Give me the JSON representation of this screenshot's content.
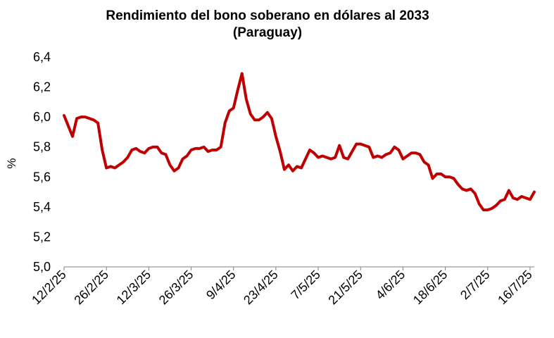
{
  "chart_data": {
    "type": "line",
    "title_lines": [
      "Rendimiento del bono soberano en dólares al 2033",
      "(Paraguay)"
    ],
    "xlabel": "",
    "ylabel": "%",
    "ylim": [
      5.0,
      6.4
    ],
    "yticks": [
      5.0,
      5.2,
      5.4,
      5.6,
      5.8,
      6.0,
      6.2,
      6.4
    ],
    "ytick_labels": [
      "5,0",
      "5,2",
      "5,4",
      "5,6",
      "5,8",
      "6,0",
      "6,2",
      "6,4"
    ],
    "xticks": [
      "12/2/25",
      "26/2/25",
      "12/3/25",
      "26/3/25",
      "9/4/25",
      "23/4/25",
      "7/5/25",
      "21/5/25",
      "4/6/25",
      "18/6/25",
      "2/7/25",
      "16/7/25"
    ],
    "grid": false,
    "legend": "none",
    "series": [
      {
        "color": "#c00000",
        "x": [
          "12/2/25",
          "13/2/25",
          "14/2/25",
          "17/2/25",
          "18/2/25",
          "19/2/25",
          "20/2/25",
          "21/2/25",
          "24/2/25",
          "25/2/25",
          "26/2/25",
          "27/2/25",
          "28/2/25",
          "3/3/25",
          "4/3/25",
          "5/3/25",
          "6/3/25",
          "7/3/25",
          "10/3/25",
          "11/3/25",
          "12/3/25",
          "13/3/25",
          "14/3/25",
          "17/3/25",
          "18/3/25",
          "19/3/25",
          "20/3/25",
          "21/3/25",
          "24/3/25",
          "25/3/25",
          "26/3/25",
          "27/3/25",
          "28/3/25",
          "31/3/25",
          "1/4/25",
          "2/4/25",
          "3/4/25",
          "4/4/25",
          "7/4/25",
          "8/4/25",
          "9/4/25",
          "10/4/25",
          "11/4/25",
          "14/4/25",
          "15/4/25",
          "16/4/25",
          "17/4/25",
          "18/4/25",
          "21/4/25",
          "22/4/25",
          "23/4/25",
          "24/4/25",
          "25/4/25",
          "28/4/25",
          "29/4/25",
          "30/4/25",
          "1/5/25",
          "2/5/25",
          "5/5/25",
          "6/5/25",
          "7/5/25",
          "8/5/25",
          "9/5/25",
          "12/5/25",
          "13/5/25",
          "14/5/25",
          "15/5/25",
          "16/5/25",
          "19/5/25",
          "20/5/25",
          "21/5/25",
          "22/5/25",
          "23/5/25",
          "26/5/25",
          "27/5/25",
          "28/5/25",
          "29/5/25",
          "30/5/25",
          "2/6/25",
          "3/6/25",
          "4/6/25",
          "5/6/25",
          "6/6/25",
          "9/6/25",
          "10/6/25",
          "11/6/25",
          "12/6/25",
          "13/6/25",
          "16/6/25",
          "17/6/25",
          "18/6/25",
          "19/6/25",
          "20/6/25",
          "23/6/25",
          "24/6/25",
          "25/6/25",
          "26/6/25",
          "27/6/25",
          "30/6/25",
          "1/7/25",
          "2/7/25",
          "3/7/25",
          "4/7/25",
          "7/7/25",
          "8/7/25",
          "9/7/25",
          "10/7/25",
          "11/7/25",
          "14/7/25",
          "15/7/25",
          "16/7/25",
          "17/7/25"
        ],
        "values": [
          6.01,
          5.94,
          5.87,
          5.99,
          6.0,
          6.0,
          5.99,
          5.98,
          5.96,
          5.78,
          5.66,
          5.67,
          5.66,
          5.68,
          5.7,
          5.73,
          5.78,
          5.79,
          5.77,
          5.76,
          5.79,
          5.8,
          5.8,
          5.76,
          5.75,
          5.68,
          5.64,
          5.66,
          5.72,
          5.74,
          5.78,
          5.79,
          5.79,
          5.8,
          5.77,
          5.78,
          5.78,
          5.8,
          5.96,
          6.04,
          6.06,
          6.18,
          6.29,
          6.12,
          6.02,
          5.98,
          5.98,
          6.0,
          6.03,
          5.99,
          5.87,
          5.77,
          5.65,
          5.68,
          5.64,
          5.67,
          5.66,
          5.72,
          5.78,
          5.76,
          5.73,
          5.74,
          5.73,
          5.72,
          5.73,
          5.81,
          5.73,
          5.72,
          5.77,
          5.82,
          5.82,
          5.81,
          5.8,
          5.73,
          5.74,
          5.73,
          5.75,
          5.76,
          5.8,
          5.78,
          5.72,
          5.74,
          5.76,
          5.76,
          5.75,
          5.7,
          5.68,
          5.59,
          5.62,
          5.62,
          5.6,
          5.6,
          5.59,
          5.55,
          5.52,
          5.51,
          5.52,
          5.49,
          5.42,
          5.38,
          5.38,
          5.39,
          5.41,
          5.44,
          5.45,
          5.51,
          5.46,
          5.45,
          5.47,
          5.46,
          5.45,
          5.5
        ]
      }
    ]
  }
}
